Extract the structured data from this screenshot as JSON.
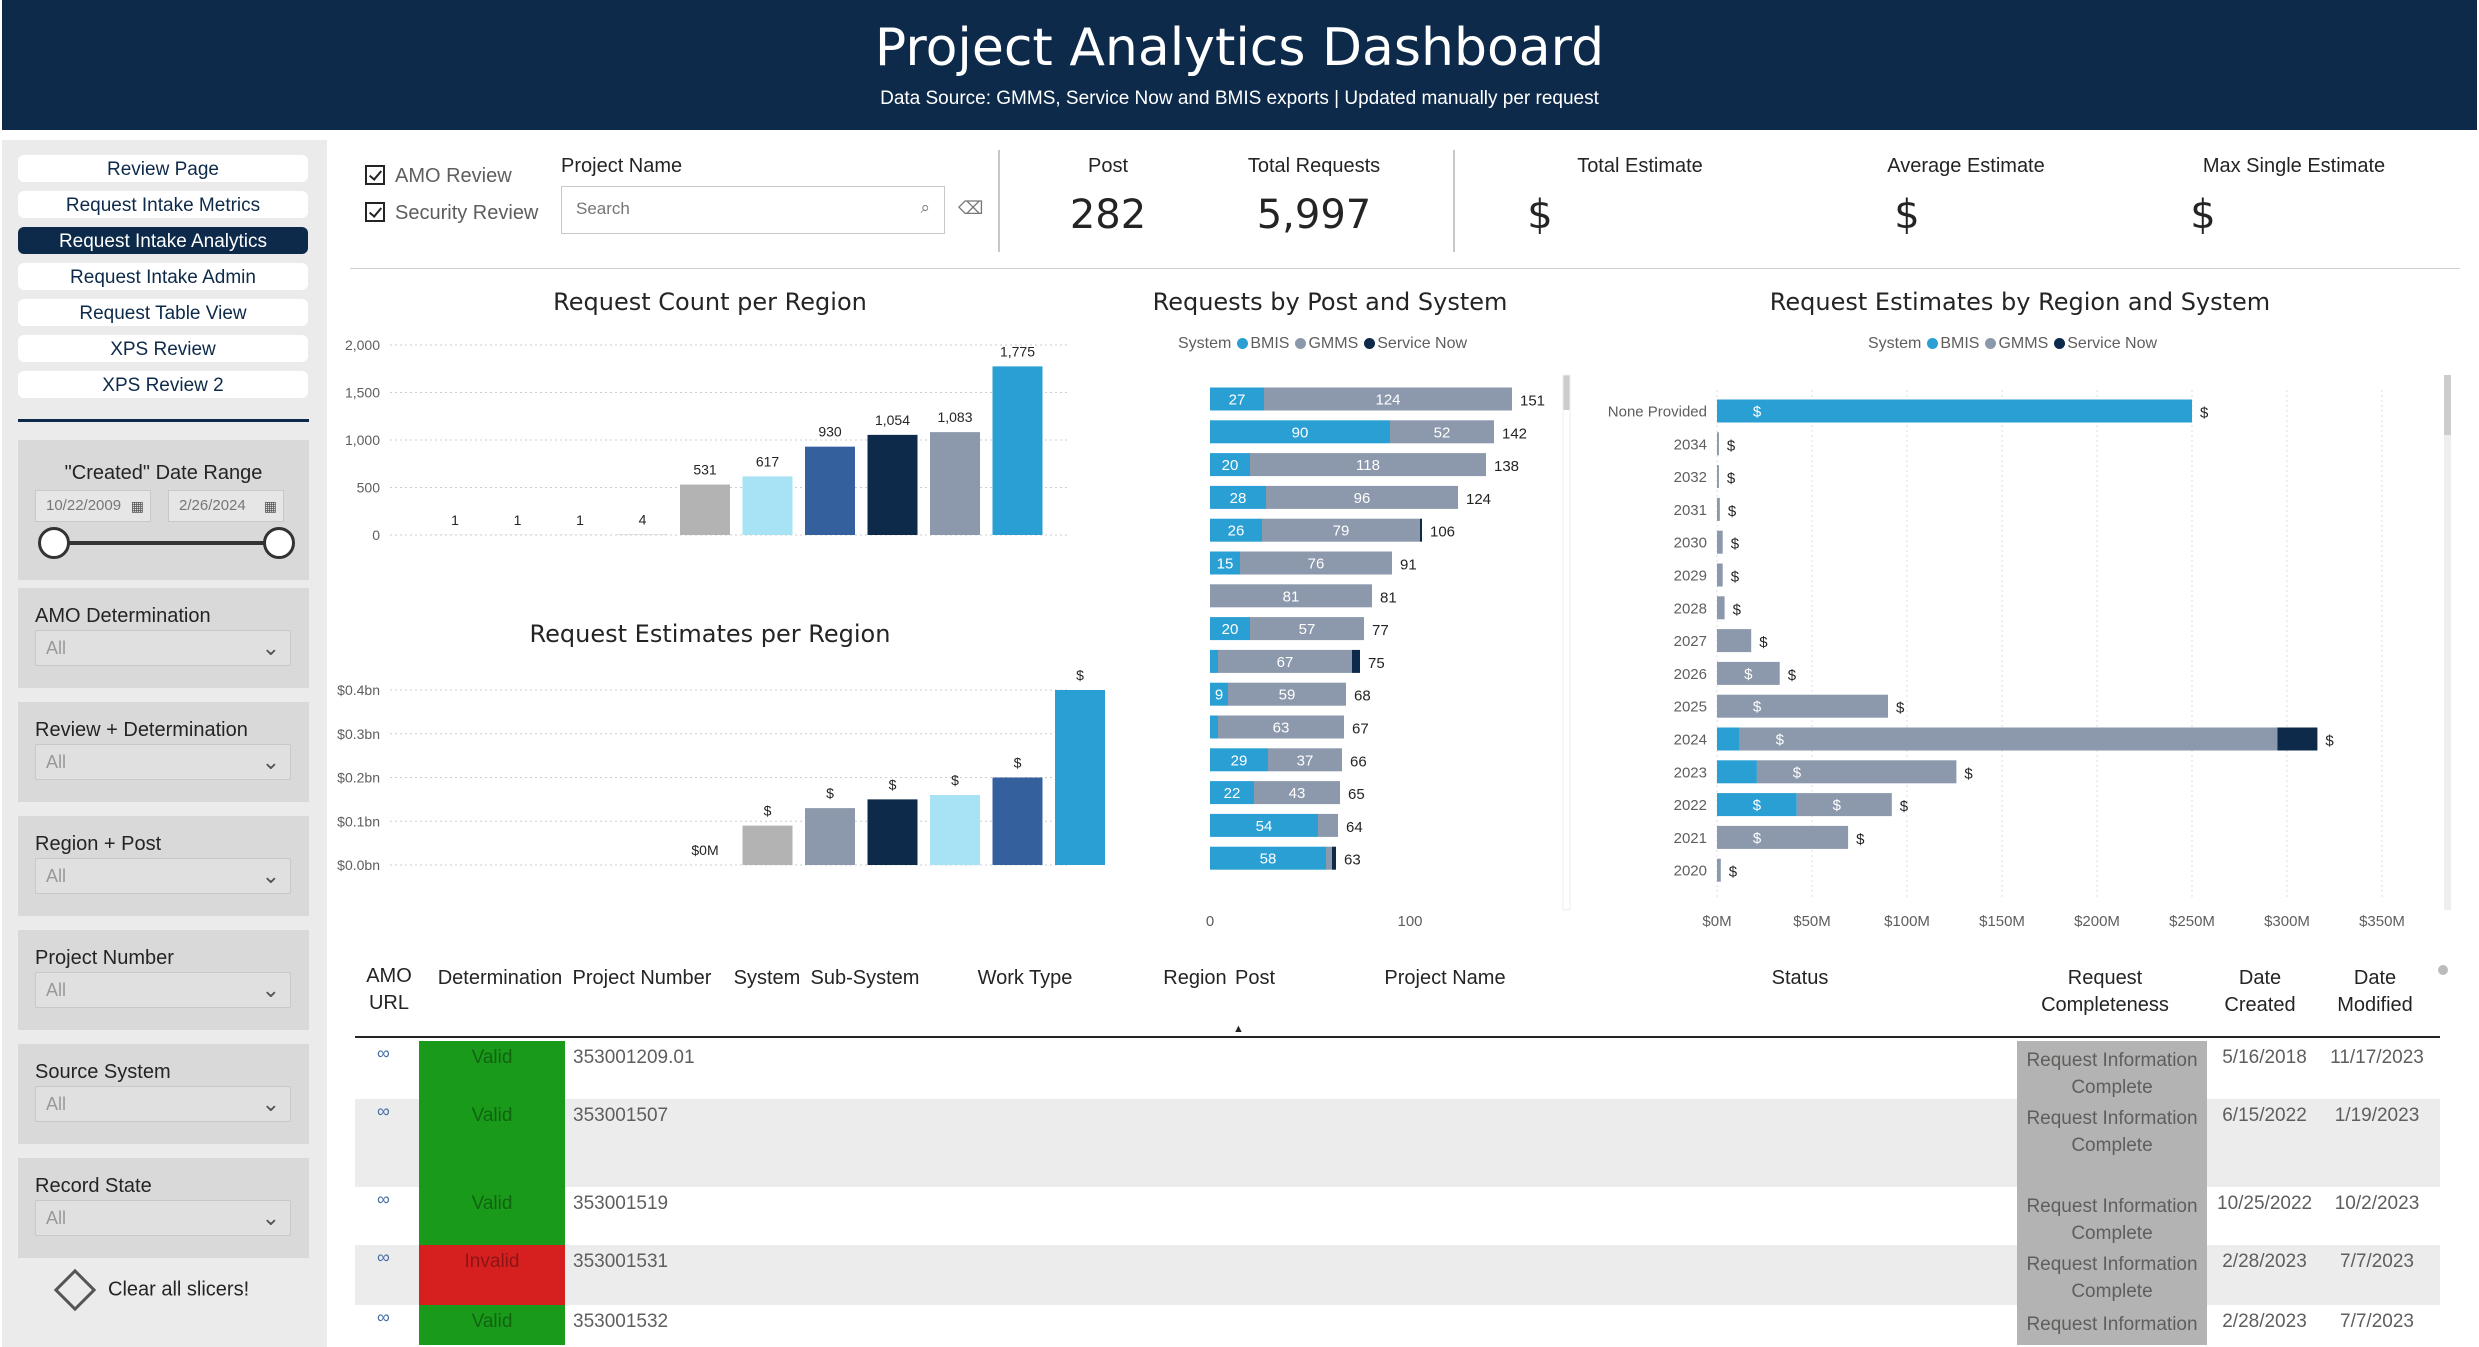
{
  "header": {
    "title": "Project Analytics Dashboard",
    "subtitle": "Data Source: GMMS, Service Now and BMIS exports | Updated manually per request"
  },
  "nav": [
    "Review Page",
    "Request Intake Metrics",
    "Request Intake Analytics",
    "Request Intake Admin",
    "Request Table View",
    "XPS Review",
    "XPS Review  2"
  ],
  "nav_active": 2,
  "date_range": {
    "label": "\"Created\" Date Range",
    "start": "10/22/2009",
    "end": "2/26/2024"
  },
  "slicers": [
    {
      "label": "AMO Determination",
      "value": "All"
    },
    {
      "label": "Review + Determination",
      "value": "All"
    },
    {
      "label": "Region + Post",
      "value": "All"
    },
    {
      "label": "Project Number",
      "value": "All"
    },
    {
      "label": "Source System",
      "value": "All"
    },
    {
      "label": "Record State",
      "value": "All"
    }
  ],
  "clear_label": "Clear all slicers!",
  "filters": {
    "amo_review": "AMO Review",
    "security_review": "Security Review",
    "project_name_label": "Project Name",
    "search_placeholder": "Search"
  },
  "kpis": [
    {
      "label": "Post",
      "value": "282"
    },
    {
      "label": "Total Requests",
      "value": "5,997"
    },
    {
      "label": "Total Estimate",
      "value": "$"
    },
    {
      "label": "Average Estimate",
      "value": "$"
    },
    {
      "label": "Max Single Estimate",
      "value": "$"
    }
  ],
  "colors": {
    "bmis": "#2a9fd4",
    "gmms": "#8c98ab",
    "servicenow": "#0d2a4a",
    "header": "#0d2a4a",
    "valid": "#1a9a1a",
    "invalid": "#d62020",
    "complete": "#b3b3b3"
  },
  "legend": {
    "title": "System",
    "items": [
      "BMIS",
      "GMMS",
      "Service Now"
    ]
  },
  "chart_data": [
    {
      "type": "bar",
      "title": "Request Count per Region",
      "values": [
        1,
        1,
        1,
        4,
        531,
        617,
        930,
        1054,
        1083,
        1775
      ],
      "labels": [
        "1",
        "1",
        "1",
        "4",
        "531",
        "617",
        "930",
        "1,054",
        "1,083",
        "1,775"
      ],
      "bar_colors": [
        "#b3b3b3",
        "#b3b3b3",
        "#b3b3b3",
        "#b3b3b3",
        "#b3b3b3",
        "#a7e3f5",
        "#34609e",
        "#0d2a4a",
        "#8c98ab",
        "#2a9fd4"
      ],
      "yticks": [
        "2,000",
        "1,500",
        "1,000",
        "500",
        "0"
      ],
      "ylim": [
        0,
        2000
      ],
      "grid": true
    },
    {
      "type": "bar",
      "title": "Request Estimates per Region",
      "values": [
        0,
        0.09,
        0.13,
        0.15,
        0.16,
        0.2,
        0.4
      ],
      "labels": [
        "$0M",
        "$",
        "$",
        "$",
        "$",
        "$",
        "$"
      ],
      "bar_colors": [
        "#b3b3b3",
        "#b3b3b3",
        "#8c98ab",
        "#0d2a4a",
        "#a7e3f5",
        "#34609e",
        "#2a9fd4"
      ],
      "yticks": [
        "$0.4bn",
        "$0.3bn",
        "$0.2bn",
        "$0.1bn",
        "$0.0bn"
      ],
      "ylim": [
        0,
        0.4
      ],
      "grid": true
    },
    {
      "type": "bar",
      "title": "Requests by Post and System",
      "orientation": "horizontal",
      "stacked": true,
      "series": [
        {
          "name": "BMIS",
          "values": [
            27,
            90,
            20,
            28,
            26,
            15,
            0,
            20,
            4,
            9,
            4,
            29,
            22,
            54,
            58
          ]
        },
        {
          "name": "GMMS",
          "values": [
            124,
            52,
            118,
            96,
            79,
            76,
            81,
            57,
            67,
            59,
            63,
            37,
            43,
            10,
            3
          ]
        },
        {
          "name": "Service Now",
          "values": [
            0,
            0,
            0,
            0,
            1,
            0,
            0,
            0,
            4,
            0,
            0,
            0,
            0,
            0,
            2
          ]
        }
      ],
      "totals": [
        151,
        142,
        138,
        124,
        106,
        91,
        81,
        77,
        75,
        68,
        67,
        66,
        65,
        64,
        63
      ],
      "segment_labels": [
        [
          "27",
          "124"
        ],
        [
          "90",
          "52"
        ],
        [
          "20",
          "118"
        ],
        [
          "28",
          "96"
        ],
        [
          "26",
          "79"
        ],
        [
          "15",
          "76"
        ],
        [
          "",
          "81"
        ],
        [
          "20",
          "57"
        ],
        [
          "",
          "67"
        ],
        [
          "9",
          "59"
        ],
        [
          "",
          "63"
        ],
        [
          "29",
          "37"
        ],
        [
          "22",
          "43"
        ],
        [
          "54",
          ""
        ],
        [
          "58",
          ""
        ]
      ],
      "xticks": [
        "0",
        "100"
      ],
      "xlim": [
        0,
        175
      ]
    },
    {
      "type": "bar",
      "title": "Request Estimates by Region and System",
      "orientation": "horizontal",
      "stacked": true,
      "categories": [
        "None Provided",
        "2034",
        "2032",
        "2031",
        "2030",
        "2029",
        "2028",
        "2027",
        "2026",
        "2025",
        "2024",
        "2023",
        "2022",
        "2021",
        "2020"
      ],
      "series": [
        {
          "name": "BMIS",
          "values": [
            250,
            0,
            0,
            0,
            0,
            0,
            0,
            0,
            0,
            0,
            12,
            21,
            42,
            0,
            0
          ]
        },
        {
          "name": "GMMS",
          "values": [
            0,
            1,
            1,
            1.5,
            3,
            3,
            4,
            18,
            33,
            90,
            283,
            105,
            50,
            69,
            2
          ]
        },
        {
          "name": "Service Now",
          "values": [
            0,
            0,
            0,
            0,
            0,
            0,
            0,
            0,
            0,
            0,
            21,
            0,
            0,
            0,
            0
          ]
        }
      ],
      "xticks": [
        "$0M",
        "$50M",
        "$100M",
        "$150M",
        "$200M",
        "$250M",
        "$300M",
        "$350M"
      ],
      "xlim": [
        0,
        350
      ]
    }
  ],
  "table": {
    "headers": [
      "AMO\nURL",
      "Determination",
      "Project Number",
      "System",
      "Sub-System",
      "Work Type",
      "Region",
      "Post",
      "Project Name",
      "Status",
      "Request\nCompleteness",
      "Date\nCreated",
      "Date\nModified"
    ],
    "rows": [
      {
        "determination": "Valid",
        "project_number": "353001209.01",
        "completeness": "Request Information Complete",
        "created": "5/16/2018",
        "modified": "11/17/2023"
      },
      {
        "determination": "Valid",
        "project_number": "353001507",
        "completeness": "Request Information Complete",
        "created": "6/15/2022",
        "modified": "1/19/2023"
      },
      {
        "determination": "Valid",
        "project_number": "353001519",
        "completeness": "Request Information Complete",
        "created": "10/25/2022",
        "modified": "10/2/2023"
      },
      {
        "determination": "Invalid",
        "project_number": "353001531",
        "completeness": "Request Information Complete",
        "created": "2/28/2023",
        "modified": "7/7/2023"
      },
      {
        "determination": "Valid",
        "project_number": "353001532",
        "completeness": "Request Information",
        "created": "2/28/2023",
        "modified": "7/7/2023"
      }
    ]
  }
}
